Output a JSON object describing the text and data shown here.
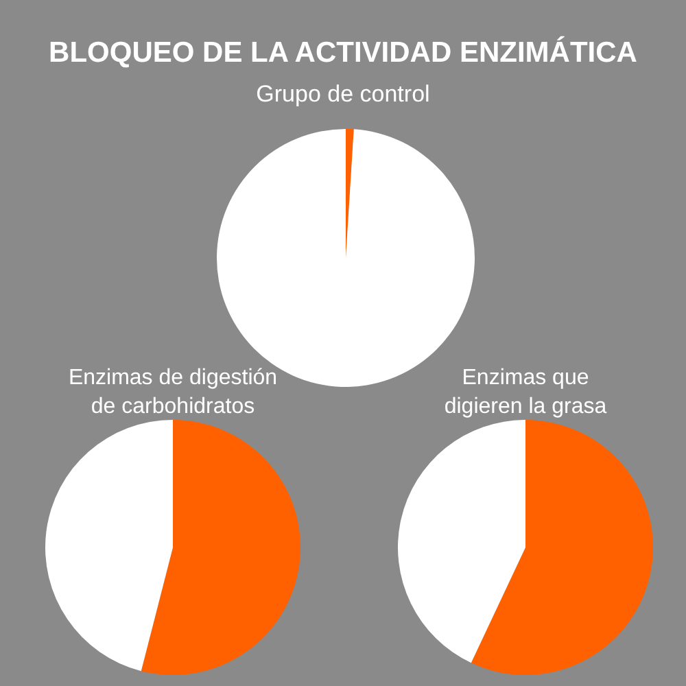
{
  "chart_data": [
    {
      "type": "pie",
      "title": "BLOQUEO DE LA ACTIVIDAD ENZIMÁTICA",
      "subtitle": "Grupo de control",
      "categories": [
        null,
        null
      ],
      "values": [
        1,
        99
      ],
      "colors": [
        "#ff6100",
        "#ffffff"
      ]
    },
    {
      "type": "pie",
      "title": "Enzimas de digestión de carbohidratos",
      "categories": [
        null,
        null
      ],
      "values": [
        54,
        46
      ],
      "colors": [
        "#ff6100",
        "#ffffff"
      ]
    },
    {
      "type": "pie",
      "title": "Enzimas que digieren la grasa",
      "categories": [
        null,
        null
      ],
      "values": [
        57,
        43
      ],
      "colors": [
        "#ff6100",
        "#ffffff"
      ]
    }
  ]
}
